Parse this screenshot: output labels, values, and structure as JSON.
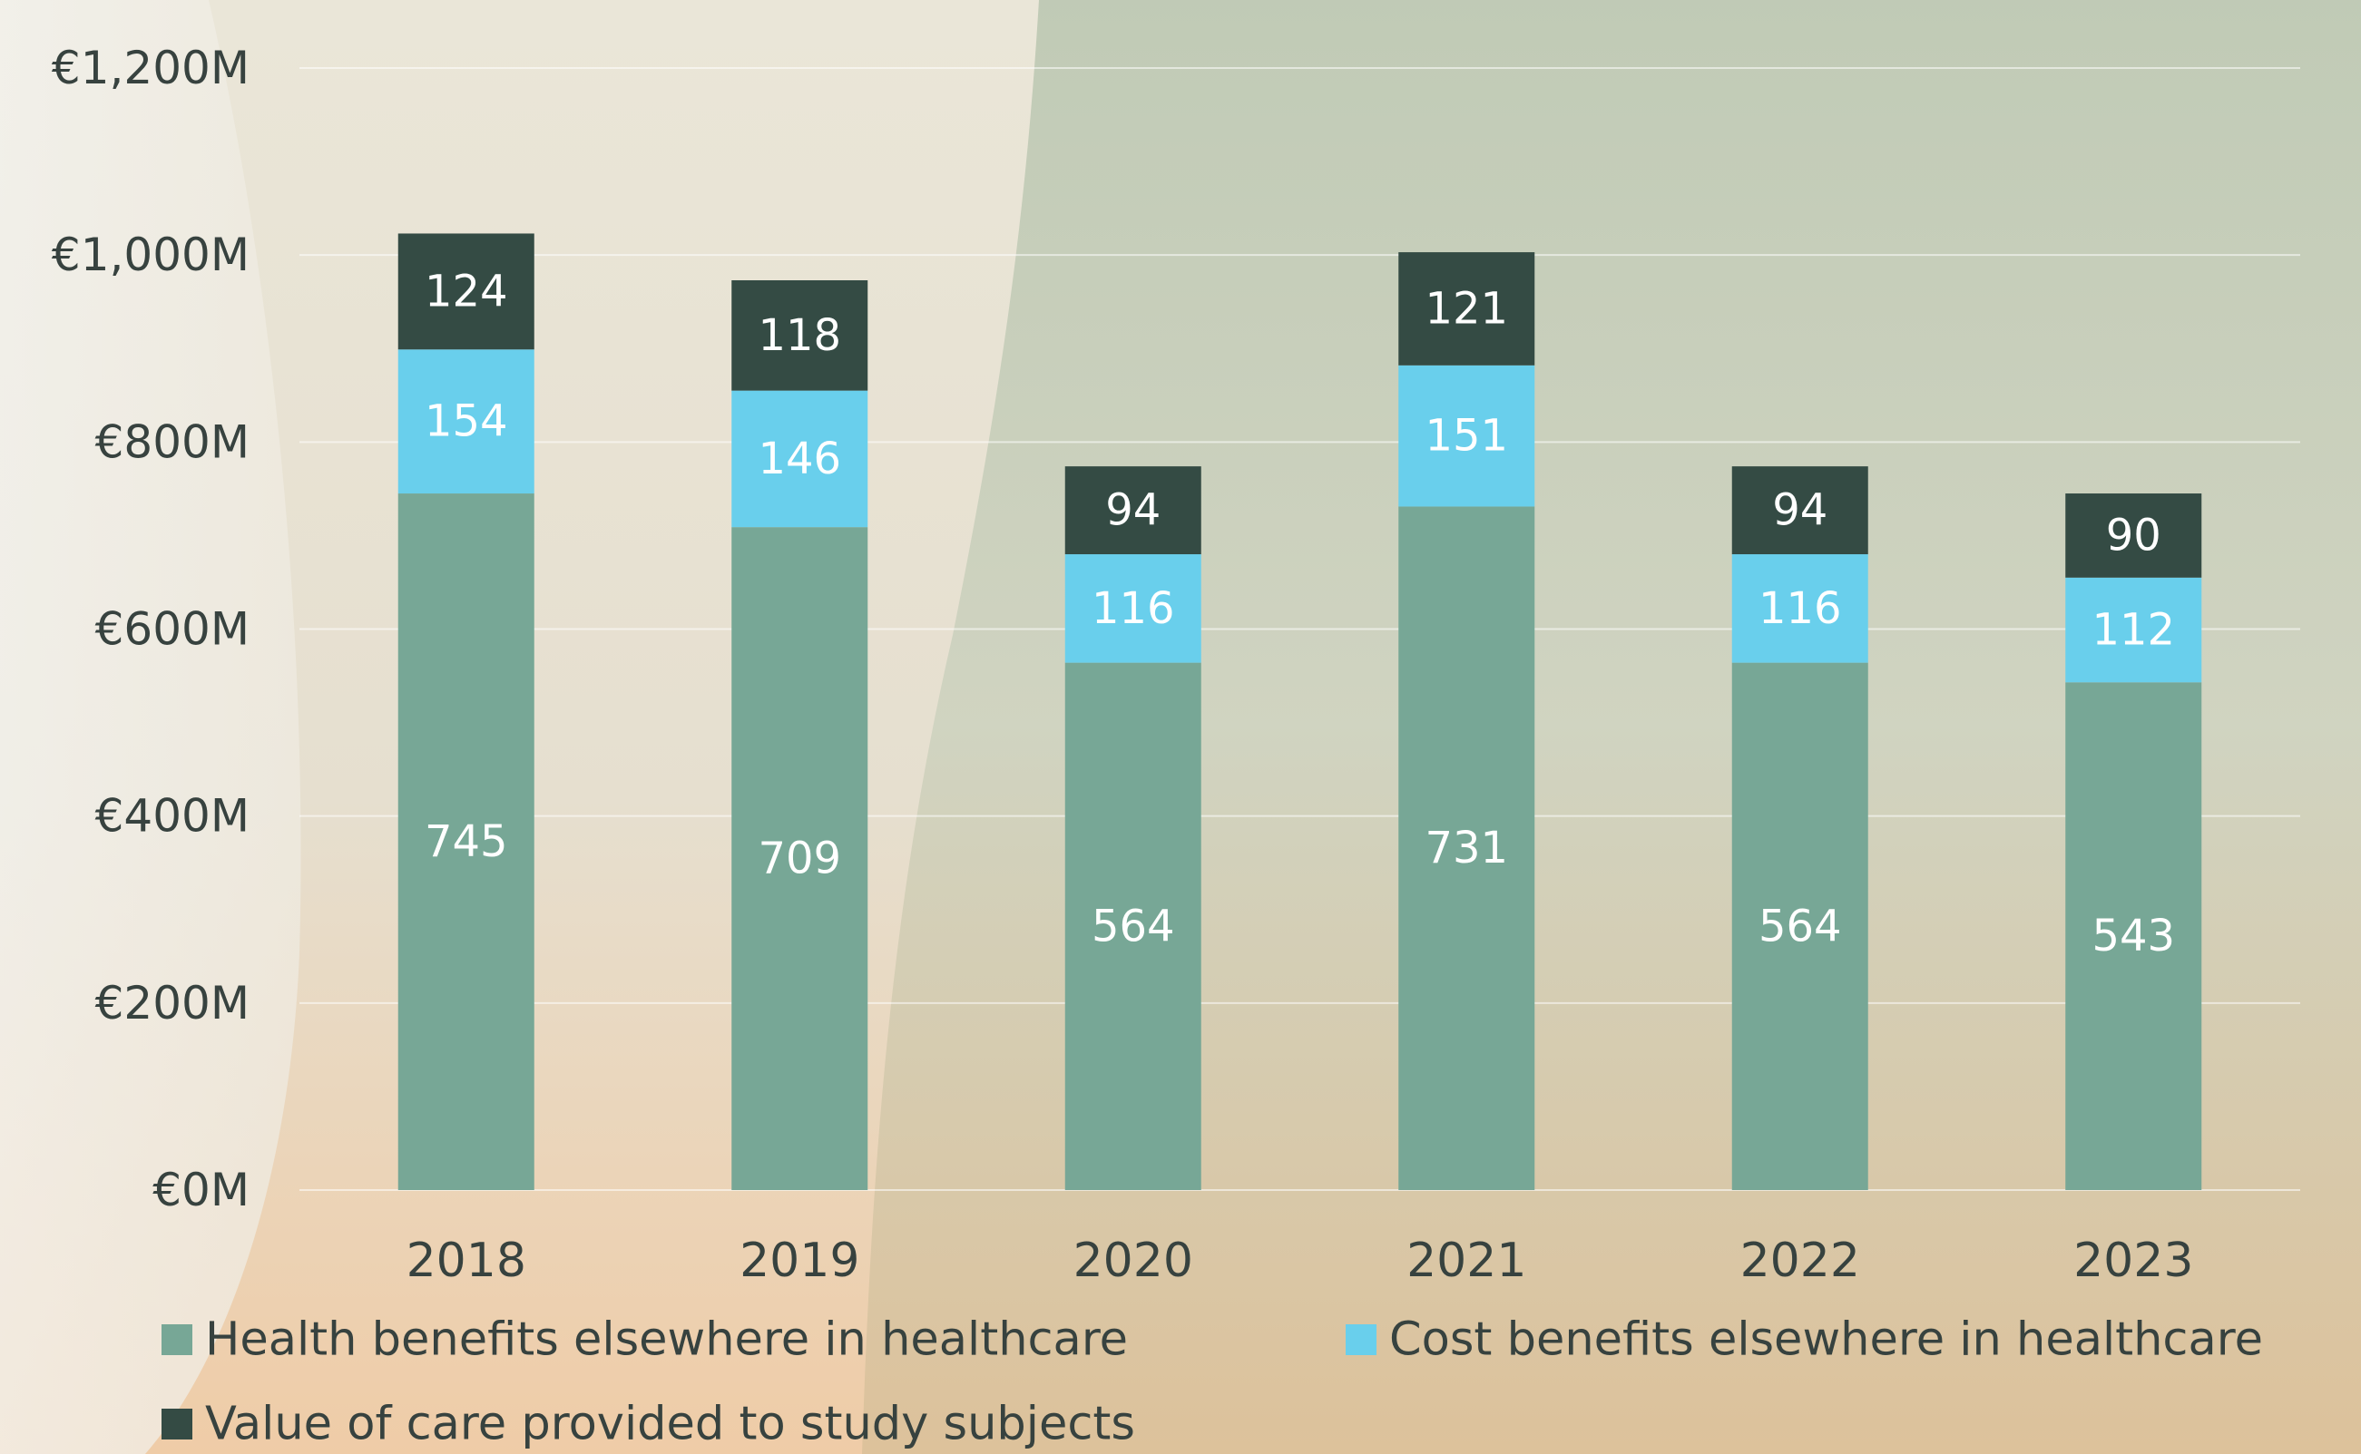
{
  "chart_data": {
    "type": "bar",
    "stacked": true,
    "categories": [
      "2018",
      "2019",
      "2020",
      "2021",
      "2022",
      "2023"
    ],
    "series": [
      {
        "name": "Health benefits elsewhere in healthcare",
        "values": [
          745,
          709,
          564,
          731,
          564,
          543
        ],
        "color": "#77a796"
      },
      {
        "name": "Cost benefits elsewhere in healthcare",
        "values": [
          154,
          146,
          116,
          151,
          116,
          112
        ],
        "color": "#69cfec"
      },
      {
        "name": "Value of care provided to study subjects",
        "values": [
          124,
          118,
          94,
          121,
          94,
          90
        ],
        "color": "#344b44"
      }
    ],
    "y_ticks": [
      0,
      200,
      400,
      600,
      800,
      1000,
      1200
    ],
    "y_tick_labels": [
      "€0M",
      "€200M",
      "€400M",
      "€600M",
      "€800M",
      "€1,000M",
      "€1,200M"
    ],
    "ylim": [
      0,
      1200
    ],
    "grid": true,
    "legend_position": "bottom",
    "data_labels": true,
    "title": "",
    "xlabel": "",
    "ylabel": ""
  }
}
